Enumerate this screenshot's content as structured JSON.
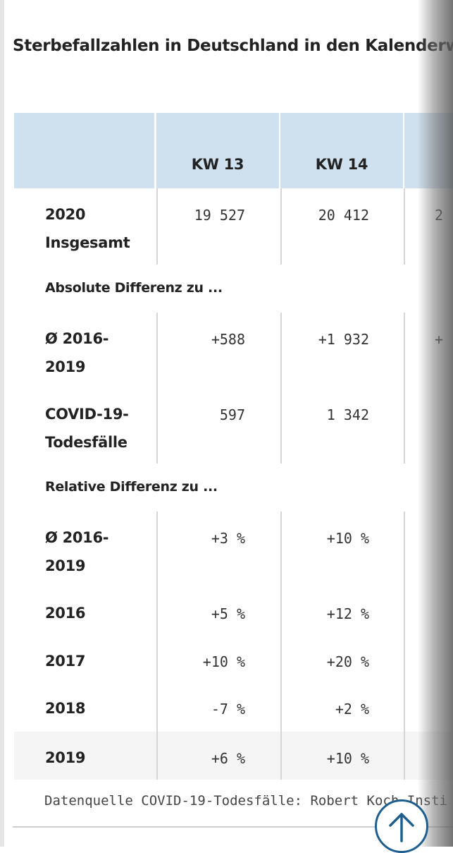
{
  "title": "Sterbefallzahlen in Deutschland in den Kalenderw",
  "table": {
    "columns": [
      "KW 13",
      "KW 14"
    ],
    "rows": [
      {
        "label_line1": "2020",
        "label_line2": "Insgesamt",
        "values": [
          "19 527",
          "20 412"
        ],
        "partial": "2"
      },
      {
        "section": "Absolute Differenz zu ..."
      },
      {
        "label_line1": "Ø 2016-",
        "label_line2": "2019",
        "values": [
          "+588",
          "+1 932"
        ],
        "partial": "+"
      },
      {
        "label_line1": "COVID-19-",
        "label_line2": "Todesfälle",
        "values": [
          "597",
          "1 342"
        ]
      },
      {
        "section": "Relative Differenz zu ..."
      },
      {
        "label_line1": "Ø 2016-",
        "label_line2": "2019",
        "values": [
          "+3 %",
          "+10 %"
        ]
      },
      {
        "label_line1": "2016",
        "values": [
          "+5 %",
          "+12 %"
        ]
      },
      {
        "label_line1": "2017",
        "values": [
          "+10 %",
          "+20 %"
        ]
      },
      {
        "label_line1": "2018",
        "values": [
          "-7 %",
          "+2 %"
        ]
      },
      {
        "label_line1": "2019",
        "values": [
          "+6 %",
          "+10 %"
        ]
      }
    ]
  },
  "source": "Datenquelle COVID-19-Todesfälle: Robert Koch-Insti",
  "icons": {
    "scroll_top": "arrow-up-icon"
  },
  "colors": {
    "header_bg": "#cfe0ee",
    "accent": "#1f5f8f"
  }
}
